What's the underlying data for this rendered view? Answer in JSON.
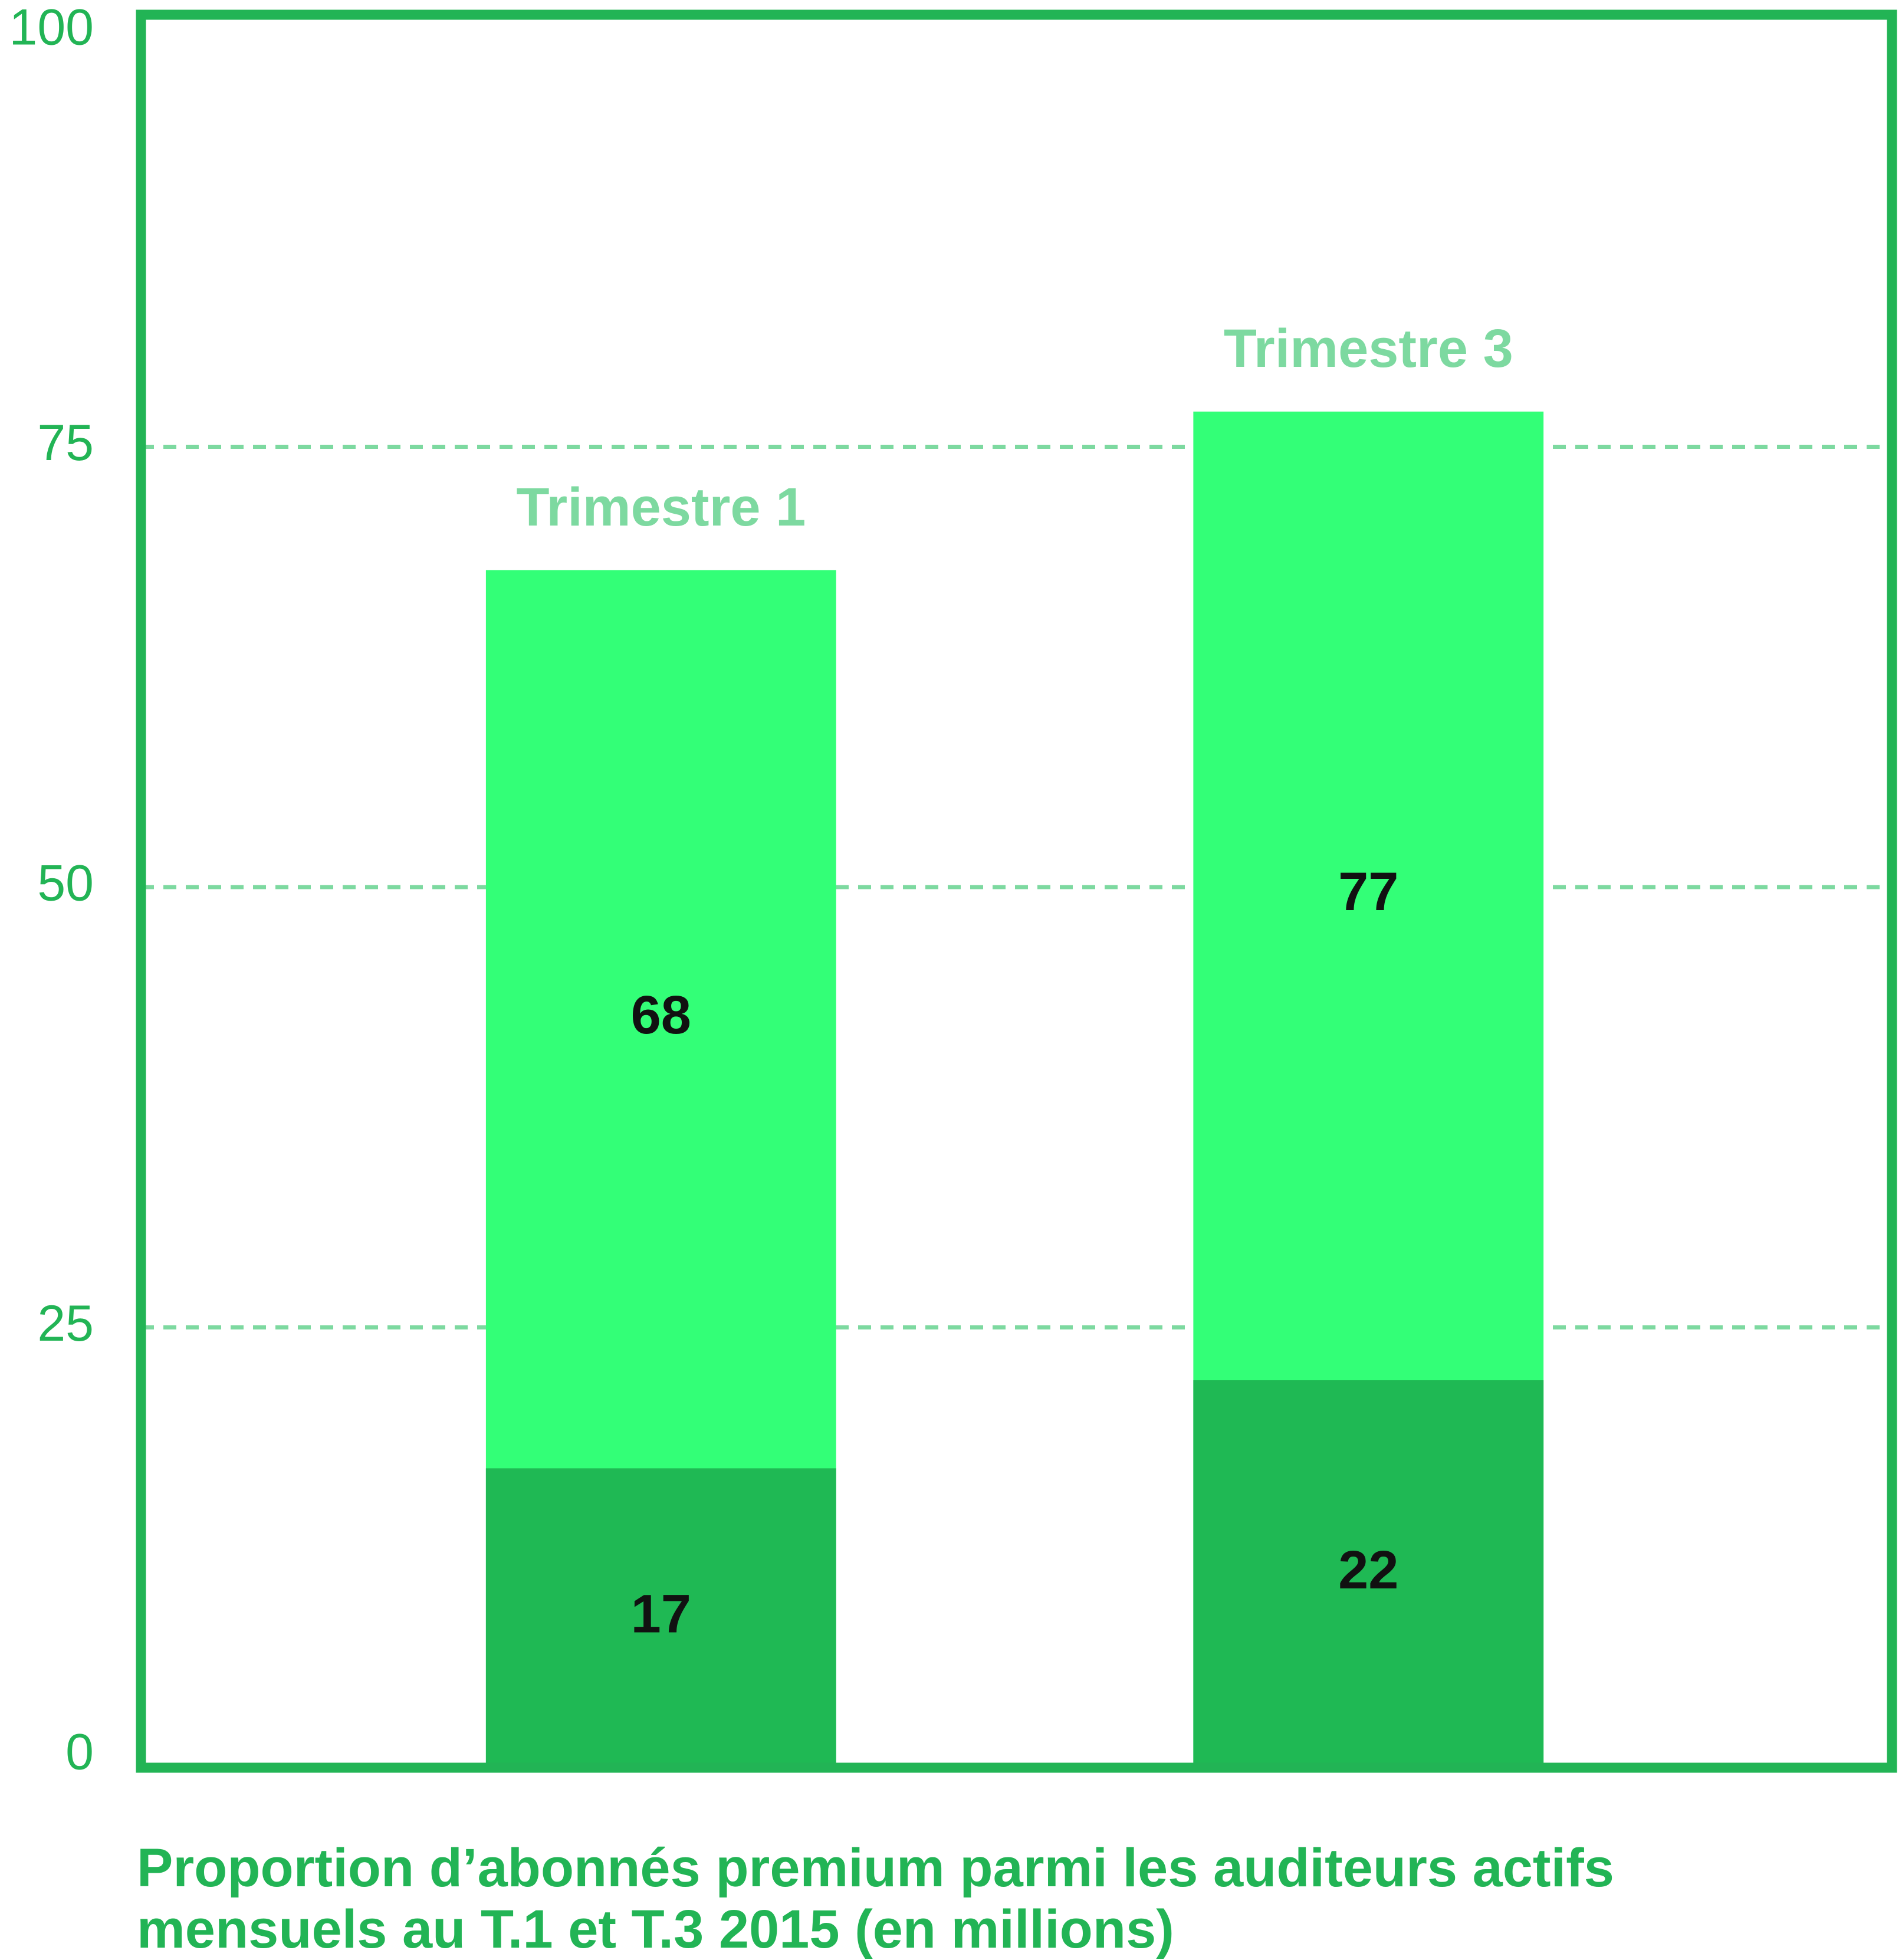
{
  "chart_data": {
    "type": "bar",
    "title": "Proportion d’abonnés premium parmi les auditeurs actifs mensuels au T.1 et T.3 2015 (en millions)",
    "categories": [
      "Trimestre 1",
      "Trimestre 3"
    ],
    "series": [
      {
        "color": "#33ff77",
        "values": [
          68,
          77
        ]
      },
      {
        "color": "#1fb954",
        "values": [
          17,
          22
        ]
      }
    ],
    "ylim": [
      0,
      100
    ],
    "yticks": [
      0,
      25,
      50,
      75,
      100
    ],
    "grid": true,
    "axis_color": "#22b455",
    "grid_color": "#7dd9a0",
    "category_color": "#7dd9a0"
  }
}
